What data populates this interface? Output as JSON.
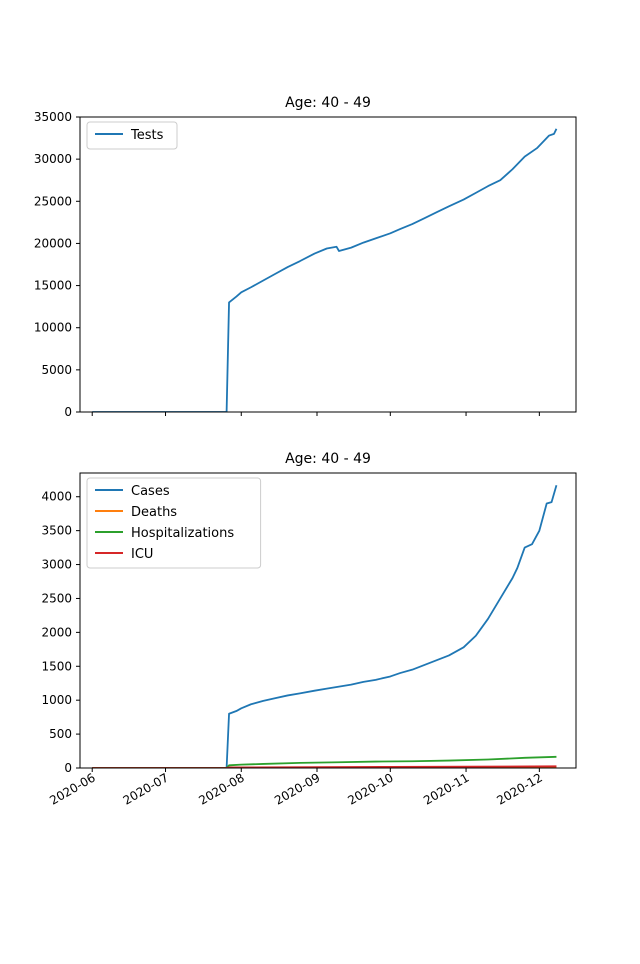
{
  "chart_data": [
    {
      "type": "line",
      "title": "Age: 40 - 49",
      "xlabel": "",
      "ylabel": "",
      "x_range": [
        "2020-05-27",
        "2020-12-16"
      ],
      "ylim": [
        0,
        35000
      ],
      "yticks": [
        0,
        5000,
        10000,
        15000,
        20000,
        25000,
        30000,
        35000
      ],
      "xticks": [
        "2020-06",
        "2020-07",
        "2020-08",
        "2020-09",
        "2020-10",
        "2020-11",
        "2020-12"
      ],
      "show_xtick_labels": false,
      "legend": "upper-left",
      "series": [
        {
          "name": "Tests",
          "color": "#1f77b4",
          "points": [
            [
              "2020-06-01",
              0
            ],
            [
              "2020-07-01",
              0
            ],
            [
              "2020-07-25",
              0
            ],
            [
              "2020-07-26",
              0
            ],
            [
              "2020-07-27",
              13000
            ],
            [
              "2020-07-30",
              13700
            ],
            [
              "2020-08-01",
              14200
            ],
            [
              "2020-08-05",
              14800
            ],
            [
              "2020-08-10",
              15600
            ],
            [
              "2020-08-15",
              16400
            ],
            [
              "2020-08-20",
              17200
            ],
            [
              "2020-08-25",
              17900
            ],
            [
              "2020-08-31",
              18800
            ],
            [
              "2020-09-05",
              19400
            ],
            [
              "2020-09-09",
              19600
            ],
            [
              "2020-09-10",
              19100
            ],
            [
              "2020-09-15",
              19500
            ],
            [
              "2020-09-20",
              20100
            ],
            [
              "2020-09-25",
              20600
            ],
            [
              "2020-10-01",
              21200
            ],
            [
              "2020-10-05",
              21700
            ],
            [
              "2020-10-10",
              22300
            ],
            [
              "2020-10-15",
              23000
            ],
            [
              "2020-10-20",
              23700
            ],
            [
              "2020-10-25",
              24400
            ],
            [
              "2020-10-31",
              25200
            ],
            [
              "2020-11-05",
              26000
            ],
            [
              "2020-11-10",
              26800
            ],
            [
              "2020-11-15",
              27500
            ],
            [
              "2020-11-20",
              28800
            ],
            [
              "2020-11-25",
              30300
            ],
            [
              "2020-11-30",
              31300
            ],
            [
              "2020-12-05",
              32800
            ],
            [
              "2020-12-07",
              33000
            ],
            [
              "2020-12-08",
              33600
            ]
          ]
        }
      ]
    },
    {
      "type": "line",
      "title": "Age: 40 - 49",
      "xlabel": "",
      "ylabel": "",
      "x_range": [
        "2020-05-27",
        "2020-12-16"
      ],
      "ylim": [
        0,
        4350
      ],
      "yticks": [
        0,
        500,
        1000,
        1500,
        2000,
        2500,
        3000,
        3500,
        4000
      ],
      "xticks": [
        "2020-06",
        "2020-07",
        "2020-08",
        "2020-09",
        "2020-10",
        "2020-11",
        "2020-12"
      ],
      "show_xtick_labels": true,
      "legend": "upper-left",
      "series": [
        {
          "name": "Cases",
          "color": "#1f77b4",
          "points": [
            [
              "2020-06-01",
              0
            ],
            [
              "2020-07-25",
              0
            ],
            [
              "2020-07-26",
              0
            ],
            [
              "2020-07-27",
              800
            ],
            [
              "2020-07-30",
              840
            ],
            [
              "2020-08-01",
              880
            ],
            [
              "2020-08-05",
              940
            ],
            [
              "2020-08-10",
              990
            ],
            [
              "2020-08-15",
              1030
            ],
            [
              "2020-08-20",
              1070
            ],
            [
              "2020-08-25",
              1100
            ],
            [
              "2020-08-31",
              1140
            ],
            [
              "2020-09-05",
              1170
            ],
            [
              "2020-09-10",
              1200
            ],
            [
              "2020-09-15",
              1230
            ],
            [
              "2020-09-20",
              1270
            ],
            [
              "2020-09-25",
              1300
            ],
            [
              "2020-10-01",
              1350
            ],
            [
              "2020-10-05",
              1400
            ],
            [
              "2020-10-10",
              1450
            ],
            [
              "2020-10-15",
              1520
            ],
            [
              "2020-10-20",
              1590
            ],
            [
              "2020-10-25",
              1660
            ],
            [
              "2020-10-31",
              1780
            ],
            [
              "2020-11-05",
              1950
            ],
            [
              "2020-11-10",
              2200
            ],
            [
              "2020-11-15",
              2500
            ],
            [
              "2020-11-20",
              2800
            ],
            [
              "2020-11-22",
              2950
            ],
            [
              "2020-11-25",
              3250
            ],
            [
              "2020-11-28",
              3300
            ],
            [
              "2020-12-01",
              3500
            ],
            [
              "2020-12-04",
              3900
            ],
            [
              "2020-12-06",
              3920
            ],
            [
              "2020-12-08",
              4170
            ]
          ]
        },
        {
          "name": "Deaths",
          "color": "#ff7f0e",
          "points": [
            [
              "2020-06-01",
              0
            ],
            [
              "2020-07-26",
              0
            ],
            [
              "2020-07-27",
              2
            ],
            [
              "2020-09-01",
              4
            ],
            [
              "2020-10-01",
              6
            ],
            [
              "2020-11-01",
              8
            ],
            [
              "2020-12-08",
              12
            ]
          ]
        },
        {
          "name": "Hospitalizations",
          "color": "#2ca02c",
          "points": [
            [
              "2020-06-01",
              0
            ],
            [
              "2020-07-26",
              0
            ],
            [
              "2020-07-27",
              40
            ],
            [
              "2020-08-01",
              50
            ],
            [
              "2020-08-10",
              60
            ],
            [
              "2020-08-25",
              75
            ],
            [
              "2020-09-10",
              85
            ],
            [
              "2020-09-25",
              95
            ],
            [
              "2020-10-10",
              100
            ],
            [
              "2020-10-25",
              110
            ],
            [
              "2020-11-10",
              125
            ],
            [
              "2020-11-25",
              150
            ],
            [
              "2020-12-08",
              165
            ]
          ]
        },
        {
          "name": "ICU",
          "color": "#d62728",
          "points": [
            [
              "2020-06-01",
              0
            ],
            [
              "2020-07-26",
              0
            ],
            [
              "2020-07-27",
              8
            ],
            [
              "2020-09-01",
              12
            ],
            [
              "2020-10-01",
              16
            ],
            [
              "2020-11-01",
              20
            ],
            [
              "2020-12-08",
              25
            ]
          ]
        }
      ]
    }
  ]
}
